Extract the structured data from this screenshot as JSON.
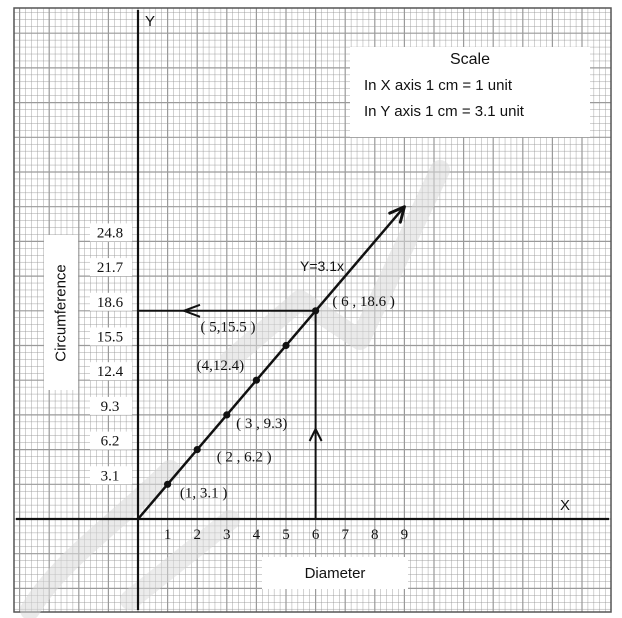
{
  "chart_data": {
    "type": "line",
    "x_axis_letter": "X",
    "y_axis_letter": "Y",
    "xlabel": "Diameter",
    "ylabel": "Circumference",
    "x_ticks": [
      "1",
      "2",
      "3",
      "4",
      "5",
      "6",
      "7",
      "8",
      "9"
    ],
    "y_ticks": [
      "3.1",
      "6.2",
      "9.3",
      "12.4",
      "15.5",
      "18.6",
      "21.7",
      "24.8"
    ],
    "equation": "Y=3.1x",
    "scale": {
      "title": "Scale",
      "x_line": "In X axis 1 cm = 1  unit",
      "y_line": "In Y axis 1 cm = 3.1 unit"
    },
    "points": [
      {
        "x": 1,
        "y": 3.1,
        "label": "(1, 3.1 )"
      },
      {
        "x": 2,
        "y": 6.2,
        "label": "( 2 , 6.2 )"
      },
      {
        "x": 3,
        "y": 9.3,
        "label": "( 3 , 9.3)"
      },
      {
        "x": 4,
        "y": 12.4,
        "label": "(4,12.4)"
      },
      {
        "x": 5,
        "y": 15.5,
        "label": "( 5,15.5 )"
      },
      {
        "x": 6,
        "y": 18.6,
        "label": "( 6 , 18.6 )"
      }
    ],
    "line_extends_to_x": 9,
    "xlim": [
      0,
      9
    ],
    "ylim": [
      0,
      24.8
    ],
    "grid": true,
    "grid_color": "#9a9a9a",
    "line_color": "#111111",
    "watermark_color": "#d9d9d9"
  }
}
